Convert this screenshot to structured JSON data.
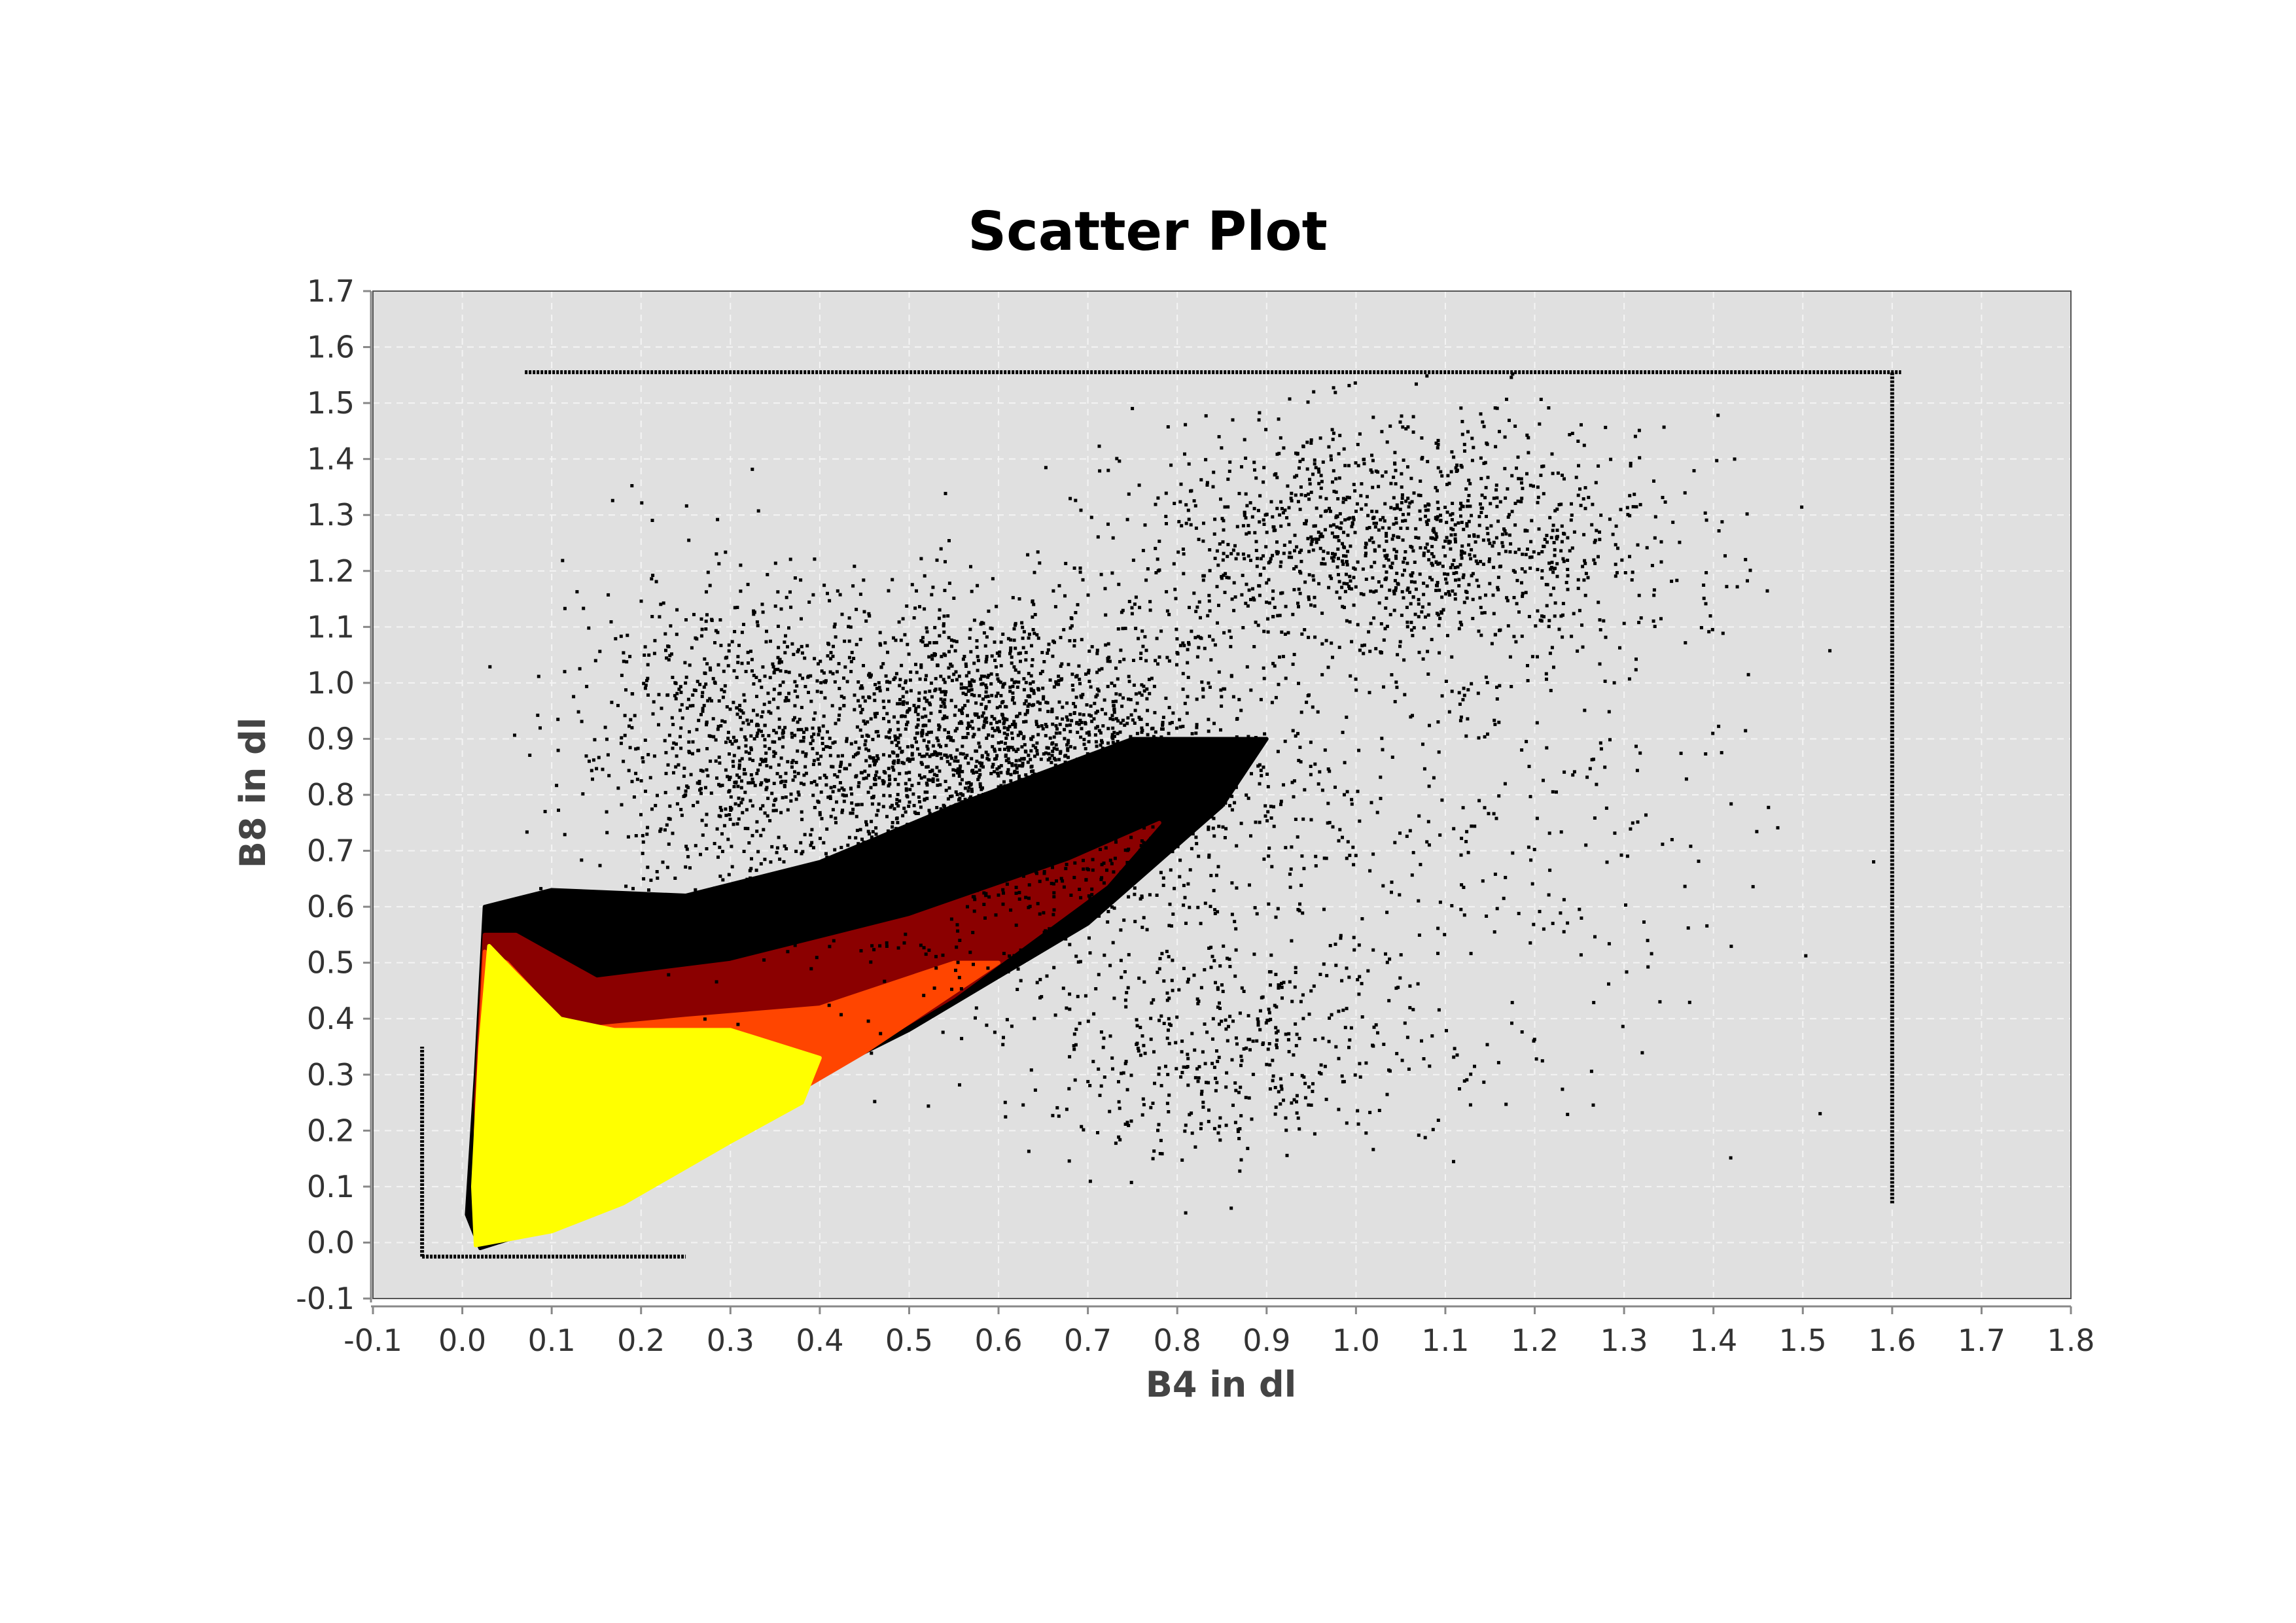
{
  "chart_data": {
    "type": "scatter",
    "title": "Scatter Plot",
    "xlabel": "B4 in dl",
    "ylabel": "B8 in dl",
    "xlim": [
      -0.1,
      1.8
    ],
    "ylim": [
      -0.1,
      1.7
    ],
    "x_ticks": [
      "-0.1",
      "0.0",
      "0.1",
      "0.2",
      "0.3",
      "0.4",
      "0.5",
      "0.6",
      "0.7",
      "0.8",
      "0.9",
      "1.0",
      "1.1",
      "1.2",
      "1.3",
      "1.4",
      "1.5",
      "1.6",
      "1.7",
      "1.8"
    ],
    "y_ticks": [
      "-0.1",
      "0.0",
      "0.1",
      "0.2",
      "0.3",
      "0.4",
      "0.5",
      "0.6",
      "0.7",
      "0.8",
      "0.9",
      "1.0",
      "1.1",
      "1.2",
      "1.3",
      "1.4",
      "1.5",
      "1.6",
      "1.7"
    ],
    "grid": true,
    "colors": {
      "plot_background": "#e0e0e0",
      "grid": "#f4f4f4",
      "density_low": "#000000",
      "density_mid": "#8b0000",
      "density_high_mid": "#ff4500",
      "density_high": "#ffff00"
    },
    "density_regions": [
      {
        "level": "low",
        "color": "#000000",
        "polygon": [
          [
            0.02,
            -0.01
          ],
          [
            0.1,
            0.03
          ],
          [
            0.3,
            0.22
          ],
          [
            0.5,
            0.38
          ],
          [
            0.7,
            0.57
          ],
          [
            0.85,
            0.78
          ],
          [
            0.9,
            0.9
          ],
          [
            0.75,
            0.9
          ],
          [
            0.55,
            0.78
          ],
          [
            0.4,
            0.68
          ],
          [
            0.25,
            0.62
          ],
          [
            0.1,
            0.63
          ],
          [
            0.025,
            0.6
          ],
          [
            0.015,
            0.3
          ],
          [
            0.005,
            0.05
          ]
        ]
      },
      {
        "level": "mid",
        "color": "#8b0000",
        "polygon": [
          [
            0.02,
            0.0
          ],
          [
            0.15,
            0.06
          ],
          [
            0.35,
            0.25
          ],
          [
            0.55,
            0.44
          ],
          [
            0.72,
            0.64
          ],
          [
            0.78,
            0.75
          ],
          [
            0.68,
            0.68
          ],
          [
            0.5,
            0.58
          ],
          [
            0.3,
            0.5
          ],
          [
            0.15,
            0.47
          ],
          [
            0.06,
            0.55
          ],
          [
            0.025,
            0.55
          ],
          [
            0.015,
            0.25
          ]
        ]
      },
      {
        "level": "high-mid",
        "color": "#ff4500",
        "polygon": [
          [
            0.02,
            0.0
          ],
          [
            0.12,
            0.04
          ],
          [
            0.3,
            0.2
          ],
          [
            0.45,
            0.34
          ],
          [
            0.6,
            0.5
          ],
          [
            0.55,
            0.5
          ],
          [
            0.4,
            0.42
          ],
          [
            0.25,
            0.4
          ],
          [
            0.12,
            0.38
          ],
          [
            0.05,
            0.5
          ],
          [
            0.025,
            0.52
          ],
          [
            0.015,
            0.2
          ]
        ]
      },
      {
        "level": "high",
        "color": "#ffff00",
        "polygon": [
          [
            0.015,
            -0.005
          ],
          [
            0.1,
            0.02
          ],
          [
            0.18,
            0.07
          ],
          [
            0.3,
            0.18
          ],
          [
            0.38,
            0.25
          ],
          [
            0.4,
            0.33
          ],
          [
            0.3,
            0.38
          ],
          [
            0.17,
            0.38
          ],
          [
            0.11,
            0.4
          ],
          [
            0.06,
            0.48
          ],
          [
            0.03,
            0.53
          ],
          [
            0.02,
            0.35
          ],
          [
            0.012,
            0.1
          ]
        ]
      }
    ],
    "line_features": [
      {
        "orientation": "horizontal",
        "y": 1.555,
        "x_range": [
          0.07,
          1.61
        ],
        "color": "#000000"
      },
      {
        "orientation": "vertical",
        "x": 1.6,
        "y_range": [
          0.07,
          1.555
        ],
        "color": "#000000"
      },
      {
        "orientation": "horizontal",
        "y": -0.025,
        "x_range": [
          -0.045,
          0.25
        ],
        "color": "#000000"
      },
      {
        "orientation": "vertical",
        "x": -0.045,
        "y_range": [
          -0.025,
          0.35
        ],
        "color": "#000000"
      }
    ],
    "sparse_points": {
      "color": "#000000",
      "clusters": [
        {
          "center": [
            0.6,
            0.85
          ],
          "spread": [
            0.28,
            0.3
          ],
          "count": 2600
        },
        {
          "center": [
            1.05,
            1.25
          ],
          "spread": [
            0.3,
            0.22
          ],
          "count": 1300
        },
        {
          "center": [
            0.3,
            0.9
          ],
          "spread": [
            0.18,
            0.3
          ],
          "count": 700
        },
        {
          "center": [
            1.1,
            0.7
          ],
          "spread": [
            0.35,
            0.45
          ],
          "count": 350
        },
        {
          "center": [
            0.85,
            0.35
          ],
          "spread": [
            0.25,
            0.2
          ],
          "count": 450
        }
      ]
    }
  }
}
